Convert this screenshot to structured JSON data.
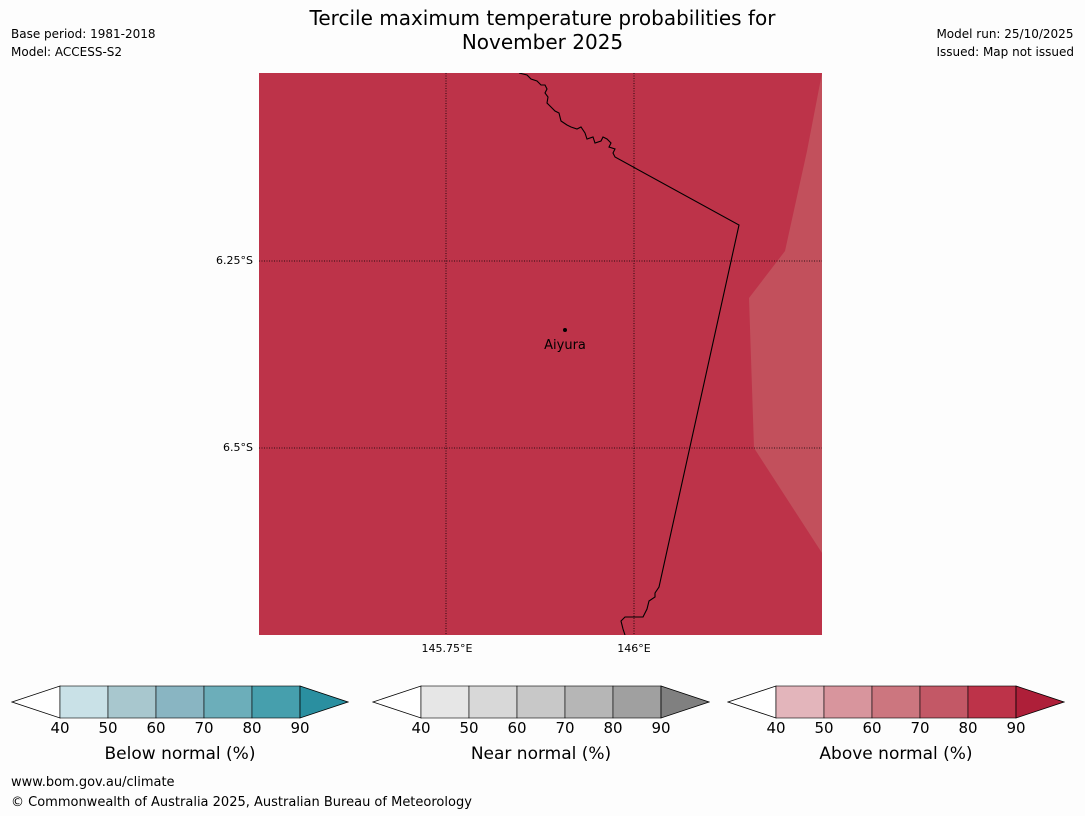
{
  "title_line1": "Tercile maximum temperature probabilities for",
  "title_line2": "November 2025",
  "meta_left": {
    "base_period": "Base period: 1981-2018",
    "model": "Model: ACCESS-S2"
  },
  "meta_right": {
    "model_run": "Model run: 25/10/2025",
    "issued": "Issued: Map not issued"
  },
  "map": {
    "lat_labels": [
      "6.25°S",
      "6.5°S"
    ],
    "lon_labels": [
      "145.75°E",
      "146°E"
    ],
    "place_name": "Aiyura",
    "fill_main": "#bd3349",
    "fill_light": "#c2505c",
    "fill_lighter": "#c45a64"
  },
  "colorbars": [
    {
      "label": "Below normal (%)",
      "ticks": [
        "40",
        "50",
        "60",
        "70",
        "80",
        "90"
      ],
      "colors": [
        "#c9e1e7",
        "#a8c7ce",
        "#89b5c2",
        "#6caeba",
        "#469fad"
      ],
      "over_color": "#2a8fa0"
    },
    {
      "label": "Near normal (%)",
      "ticks": [
        "40",
        "50",
        "60",
        "70",
        "80",
        "90"
      ],
      "colors": [
        "#e6e6e6",
        "#d8d8d8",
        "#c8c8c8",
        "#b6b6b6",
        "#a0a0a0"
      ],
      "over_color": "#808080"
    },
    {
      "label": "Above normal (%)",
      "ticks": [
        "40",
        "50",
        "60",
        "70",
        "80",
        "90"
      ],
      "colors": [
        "#e3b5bb",
        "#d8959d",
        "#cc767f",
        "#c35866",
        "#bd3349"
      ],
      "over_color": "#ae1f39"
    }
  ],
  "footer": {
    "url": "www.bom.gov.au/climate",
    "copyright": "© Commonwealth of Australia 2025, Australian Bureau of Meteorology"
  }
}
